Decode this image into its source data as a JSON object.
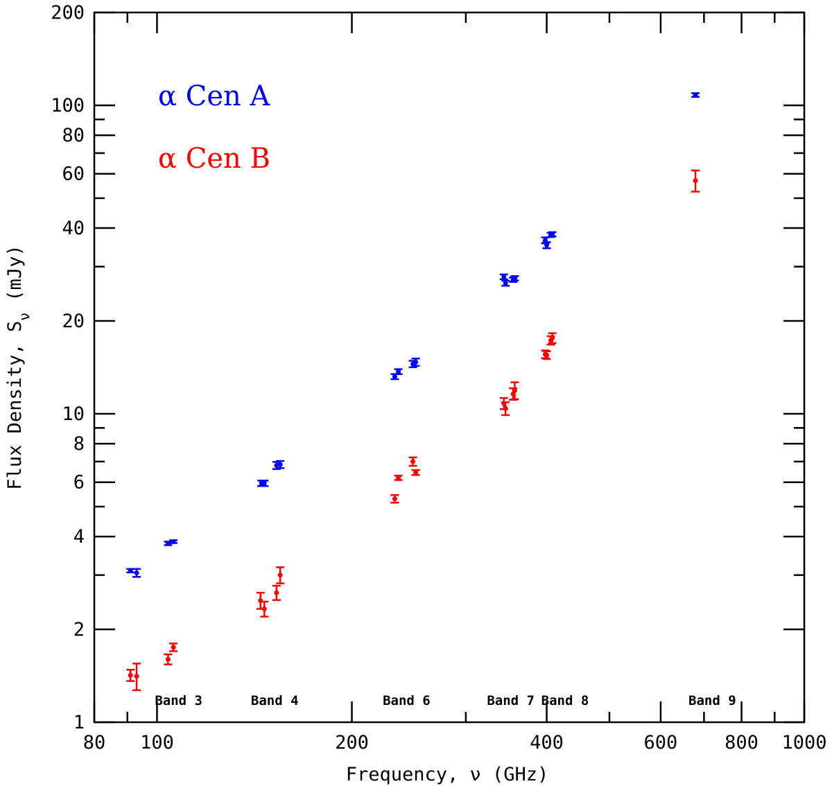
{
  "chart_data": {
    "type": "scatter",
    "xlabel": "Frequency, ν (GHz)",
    "ylabel": "Flux Density, S_ν (mJy)",
    "xscale": "log",
    "yscale": "log",
    "xlim": [
      80,
      1000
    ],
    "ylim": [
      1,
      200
    ],
    "xticks": [
      80,
      100,
      200,
      400,
      600,
      800,
      1000
    ],
    "yticks": [
      1,
      2,
      4,
      6,
      8,
      10,
      20,
      40,
      60,
      80,
      100,
      200
    ],
    "grid": false,
    "legend_placement": "top-left",
    "series": [
      {
        "name": "α Cen A",
        "color": "#0000ff",
        "points": [
          {
            "x": 91.0,
            "y": 3.1,
            "err": 0.04
          },
          {
            "x": 93.0,
            "y": 3.05,
            "err": 0.09
          },
          {
            "x": 104.0,
            "y": 3.8,
            "err": 0.05
          },
          {
            "x": 106.0,
            "y": 3.85,
            "err": 0.04
          },
          {
            "x": 145.0,
            "y": 5.95,
            "err": 0.12
          },
          {
            "x": 146.5,
            "y": 5.95,
            "err": 0.12
          },
          {
            "x": 153.0,
            "y": 6.8,
            "err": 0.18
          },
          {
            "x": 155.0,
            "y": 6.85,
            "err": 0.18
          },
          {
            "x": 233.0,
            "y": 13.2,
            "err": 0.25
          },
          {
            "x": 236.0,
            "y": 13.7,
            "err": 0.25
          },
          {
            "x": 248.5,
            "y": 14.5,
            "err": 0.35
          },
          {
            "x": 251.0,
            "y": 14.7,
            "err": 0.4
          },
          {
            "x": 343.5,
            "y": 27.8,
            "err": 0.5
          },
          {
            "x": 345.5,
            "y": 26.5,
            "err": 0.5
          },
          {
            "x": 355.0,
            "y": 27.2,
            "err": 0.45
          },
          {
            "x": 357.0,
            "y": 27.5,
            "err": 0.45
          },
          {
            "x": 398.0,
            "y": 36.5,
            "err": 0.8
          },
          {
            "x": 400.0,
            "y": 35.2,
            "err": 0.8
          },
          {
            "x": 406.0,
            "y": 38.0,
            "err": 0.6
          },
          {
            "x": 408.0,
            "y": 38.2,
            "err": 0.6
          },
          {
            "x": 679.0,
            "y": 108.0,
            "err": 1.5
          }
        ]
      },
      {
        "name": "α Cen B",
        "color": "#ff0000",
        "points": [
          {
            "x": 91.0,
            "y": 1.42,
            "err": 0.06
          },
          {
            "x": 93.0,
            "y": 1.41,
            "err": 0.14
          },
          {
            "x": 104.0,
            "y": 1.6,
            "err": 0.06
          },
          {
            "x": 106.0,
            "y": 1.75,
            "err": 0.05
          },
          {
            "x": 144.5,
            "y": 2.48,
            "err": 0.15
          },
          {
            "x": 146.5,
            "y": 2.33,
            "err": 0.13
          },
          {
            "x": 153.0,
            "y": 2.63,
            "err": 0.14
          },
          {
            "x": 155.0,
            "y": 3.0,
            "err": 0.18
          },
          {
            "x": 233.0,
            "y": 5.3,
            "err": 0.15
          },
          {
            "x": 236.0,
            "y": 6.2,
            "err": 0.1
          },
          {
            "x": 248.5,
            "y": 7.0,
            "err": 0.22
          },
          {
            "x": 251.0,
            "y": 6.45,
            "err": 0.12
          },
          {
            "x": 343.5,
            "y": 10.8,
            "err": 0.45
          },
          {
            "x": 345.5,
            "y": 10.4,
            "err": 0.5
          },
          {
            "x": 355.0,
            "y": 11.6,
            "err": 0.5
          },
          {
            "x": 357.0,
            "y": 11.9,
            "err": 0.75
          },
          {
            "x": 398.0,
            "y": 15.6,
            "err": 0.45
          },
          {
            "x": 400.0,
            "y": 15.5,
            "err": 0.45
          },
          {
            "x": 406.0,
            "y": 17.3,
            "err": 0.55
          },
          {
            "x": 408.0,
            "y": 17.6,
            "err": 0.65
          },
          {
            "x": 679.0,
            "y": 57.0,
            "err": 4.5
          }
        ]
      }
    ],
    "annotations": [
      {
        "text": "Band 3",
        "x": 108
      },
      {
        "text": "Band 4",
        "x": 152
      },
      {
        "text": "Band 6",
        "x": 243
      },
      {
        "text": "Band 7",
        "x": 352
      },
      {
        "text": "Band 8",
        "x": 427
      },
      {
        "text": "Band 9",
        "x": 721
      }
    ]
  }
}
